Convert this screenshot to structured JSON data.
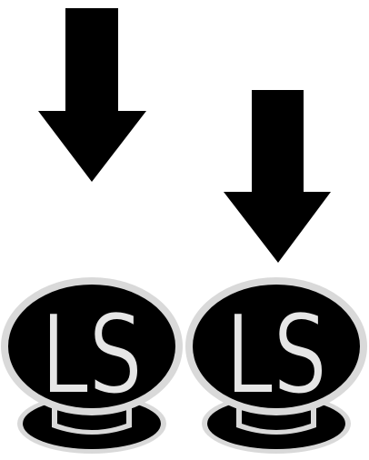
{
  "colors": {
    "background": "#ffffff",
    "icon_fill": "#000000",
    "rim": "#d9d9d9",
    "letter_fill": "#e6e6e6"
  },
  "icons": [
    {
      "arrow_icon": "down-arrow-icon",
      "button_icon": "ls-stick-button-icon",
      "button_label": "LS"
    },
    {
      "arrow_icon": "down-arrow-icon",
      "button_icon": "ls-stick-button-icon",
      "button_label": "LS"
    }
  ]
}
